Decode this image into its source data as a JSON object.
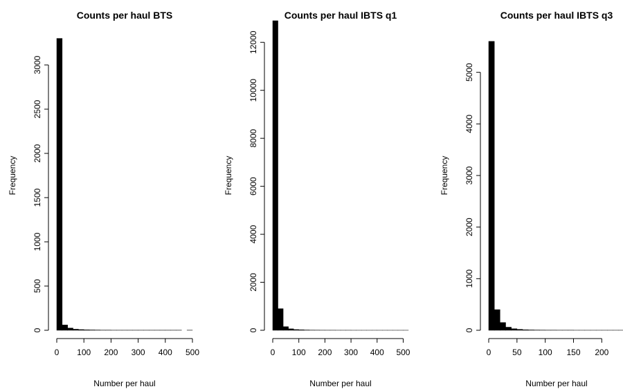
{
  "chart_data": [
    {
      "type": "histogram",
      "title": "Counts per haul BTS",
      "xlabel": "Number per haul",
      "ylabel": "Frequency",
      "color": "#000000",
      "bins": [
        0,
        20,
        40,
        60,
        80,
        100,
        120,
        140,
        160,
        180,
        200,
        220,
        240,
        260,
        280,
        300,
        320,
        340,
        360,
        380,
        400,
        420,
        440,
        460,
        480,
        500
      ],
      "counts": [
        3300,
        60,
        25,
        12,
        8,
        5,
        4,
        3,
        2,
        2,
        1,
        1,
        1,
        1,
        1,
        1,
        1,
        1,
        1,
        1,
        1,
        1,
        1,
        0,
        1
      ],
      "xlim": [
        0,
        500
      ],
      "ylim": [
        0,
        3500
      ],
      "xticks": [
        0,
        100,
        200,
        300,
        400,
        500
      ],
      "yticks": [
        0,
        500,
        1000,
        1500,
        2000,
        2500,
        3000
      ]
    },
    {
      "type": "histogram",
      "title": "Counts per haul IBTS q1",
      "xlabel": "Number per haul",
      "ylabel": "Frequency",
      "color": "#000000",
      "bins": [
        0,
        20,
        40,
        60,
        80,
        100,
        120,
        140,
        160,
        180,
        200,
        220,
        240,
        260,
        280,
        300,
        320,
        340,
        360,
        380,
        400,
        420,
        440,
        460,
        480,
        500,
        520
      ],
      "counts": [
        12900,
        900,
        150,
        60,
        30,
        20,
        12,
        8,
        6,
        4,
        3,
        3,
        2,
        2,
        2,
        1,
        1,
        1,
        1,
        1,
        1,
        1,
        1,
        1,
        1,
        1
      ],
      "xlim": [
        0,
        520
      ],
      "ylim": [
        0,
        12900
      ],
      "xticks": [
        0,
        100,
        200,
        300,
        400,
        500
      ],
      "yticks": [
        0,
        2000,
        4000,
        6000,
        8000,
        10000,
        12000
      ]
    },
    {
      "type": "histogram",
      "title": "Counts per haul IBTS q3",
      "xlabel": "Number per haul",
      "ylabel": "Frequency",
      "color": "#000000",
      "bins": [
        0,
        10,
        20,
        30,
        40,
        50,
        60,
        70,
        80,
        90,
        100,
        110,
        120,
        130,
        140,
        150,
        160,
        170,
        180,
        190,
        200,
        210,
        220,
        230,
        240
      ],
      "counts": [
        5600,
        400,
        150,
        60,
        30,
        18,
        10,
        7,
        5,
        4,
        3,
        3,
        2,
        2,
        2,
        1,
        1,
        1,
        1,
        1,
        1,
        1,
        1,
        1
      ],
      "xlim": [
        0,
        240
      ],
      "ylim": [
        0,
        6000
      ],
      "xticks": [
        0,
        50,
        100,
        150,
        200
      ],
      "yticks": [
        0,
        1000,
        2000,
        3000,
        4000,
        5000
      ]
    }
  ]
}
